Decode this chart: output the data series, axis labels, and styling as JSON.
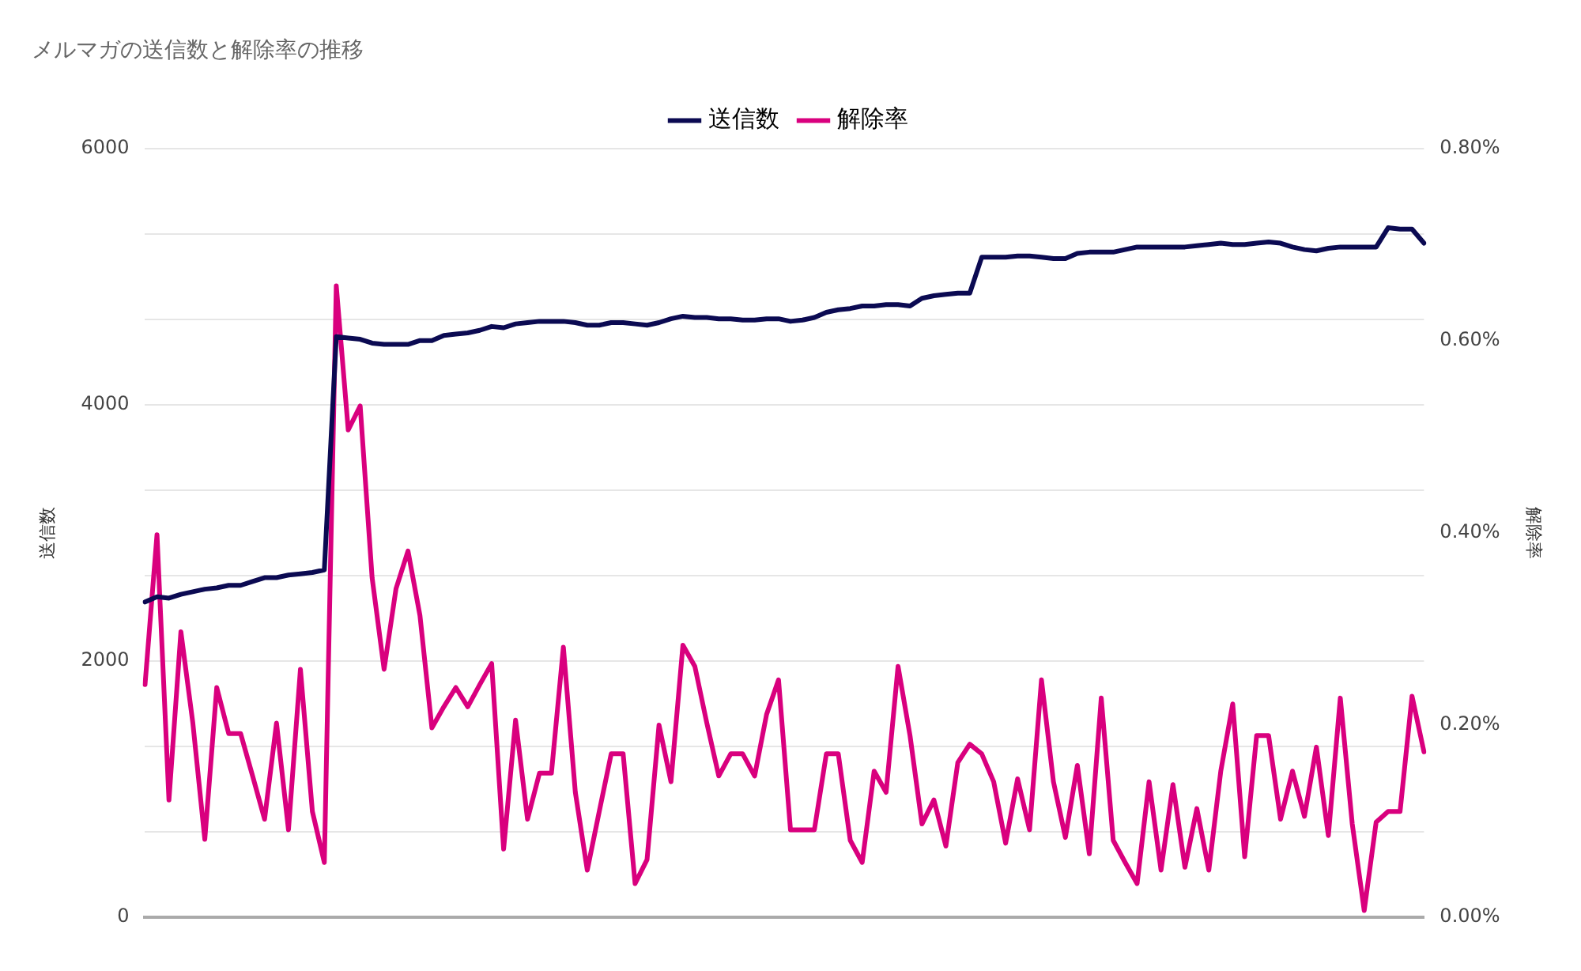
{
  "chart_data": {
    "type": "line",
    "title": "メルマガの送信数と解除率の推移",
    "ylabel": "送信数",
    "y2label": "解除率",
    "categories": [
      null,
      null,
      null,
      null,
      null,
      null,
      null,
      null,
      null,
      null,
      null,
      null,
      null,
      null,
      null,
      null,
      null,
      null,
      null,
      null,
      null,
      null,
      null,
      null,
      null,
      null,
      null,
      null,
      null,
      null,
      null,
      null,
      null,
      null,
      null,
      null,
      null,
      null,
      null,
      null,
      null,
      null,
      null,
      null,
      null,
      null,
      null,
      null,
      null,
      null,
      null,
      null,
      null,
      null,
      null,
      null,
      null,
      null,
      null,
      null,
      null,
      null,
      null,
      null,
      null,
      null,
      null,
      null,
      null,
      null,
      null,
      null,
      null,
      null,
      null,
      null,
      null,
      null,
      null,
      null,
      null,
      null,
      null,
      null,
      null,
      null,
      null,
      null,
      null,
      null,
      null,
      null,
      null,
      null,
      null,
      null,
      null,
      null,
      null,
      null,
      null,
      null,
      null,
      null,
      null,
      null,
      null,
      null
    ],
    "series": [
      {
        "name": "送信数",
        "color": "#0b0a52",
        "values": [
          2460,
          2500,
          2490,
          2520,
          2540,
          2560,
          2570,
          2590,
          2590,
          2620,
          2650,
          2650,
          2670,
          2680,
          2690,
          2710,
          4530,
          4520,
          4510,
          4480,
          4470,
          4470,
          4470,
          4500,
          4500,
          4540,
          4550,
          4560,
          4580,
          4610,
          4600,
          4630,
          4640,
          4650,
          4650,
          4650,
          4640,
          4620,
          4620,
          4640,
          4640,
          4630,
          4620,
          4640,
          4670,
          4690,
          4680,
          4680,
          4670,
          4670,
          4660,
          4660,
          4670,
          4670,
          4650,
          4660,
          4680,
          4720,
          4740,
          4750,
          4770,
          4770,
          4780,
          4780,
          4770,
          4830,
          4850,
          4860,
          4870,
          4870,
          5150,
          5150,
          5150,
          5160,
          5160,
          5150,
          5140,
          5140,
          5180,
          5190,
          5190,
          5190,
          5210,
          5230,
          5230,
          5230,
          5230,
          5230,
          5240,
          5250,
          5260,
          5250,
          5250,
          5260,
          5270,
          5260,
          5230,
          5210,
          5200,
          5220,
          5230,
          5230,
          5230,
          5230,
          5380,
          5370,
          5370,
          5260
        ]
      },
      {
        "name": "解除率",
        "color": "#d9007e",
        "axis": "y2",
        "values": [
          0.242,
          0.398,
          0.122,
          0.297,
          0.202,
          0.081,
          0.239,
          0.191,
          0.191,
          0.147,
          0.102,
          0.202,
          0.091,
          0.258,
          0.11,
          0.057,
          0.657,
          0.507,
          0.532,
          0.353,
          0.258,
          0.342,
          0.381,
          0.314,
          0.197,
          0.219,
          0.239,
          0.219,
          0.242,
          0.264,
          0.071,
          0.205,
          0.102,
          0.15,
          0.15,
          0.281,
          0.13,
          0.049,
          0.11,
          0.17,
          0.17,
          0.035,
          0.06,
          0.2,
          0.141,
          0.283,
          0.261,
          0.202,
          0.147,
          0.17,
          0.17,
          0.147,
          0.211,
          0.247,
          0.091,
          0.091,
          0.091,
          0.17,
          0.17,
          0.08,
          0.057,
          0.152,
          0.13,
          0.261,
          0.189,
          0.097,
          0.122,
          0.074,
          0.161,
          0.18,
          0.17,
          0.141,
          0.077,
          0.144,
          0.091,
          0.247,
          0.141,
          0.083,
          0.158,
          0.066,
          0.228,
          0.08,
          0.057,
          0.035,
          0.141,
          0.049,
          0.138,
          0.052,
          0.113,
          0.049,
          0.152,
          0.222,
          0.063,
          0.189,
          0.189,
          0.102,
          0.152,
          0.105,
          0.177,
          0.085,
          0.228,
          0.097,
          0.007,
          0.099,
          0.11,
          0.11,
          0.23,
          0.172
        ]
      }
    ],
    "ylim": [
      0,
      6000
    ],
    "yticks": [
      0,
      {
        "value": 666.67,
        "label": null
      },
      {
        "value": 1333.33,
        "label": null
      },
      2000,
      {
        "value": 2666.67,
        "label": null
      },
      {
        "value": 3333.33,
        "label": null
      },
      4000,
      {
        "value": 4666.67,
        "label": null
      },
      {
        "value": 5333.33,
        "label": null
      },
      6000
    ],
    "y2lim": [
      0,
      0.8
    ],
    "y2ticks": [
      {
        "value": 0,
        "label": "0.00%"
      },
      {
        "value": 0.2,
        "label": "0.20%"
      },
      {
        "value": 0.4,
        "label": "0.40%"
      },
      {
        "value": 0.6,
        "label": "0.60%"
      },
      {
        "value": 0.8,
        "label": "0.80%"
      }
    ],
    "grid": "y",
    "legend": "top",
    "marker": "none",
    "line_style": "solid"
  }
}
